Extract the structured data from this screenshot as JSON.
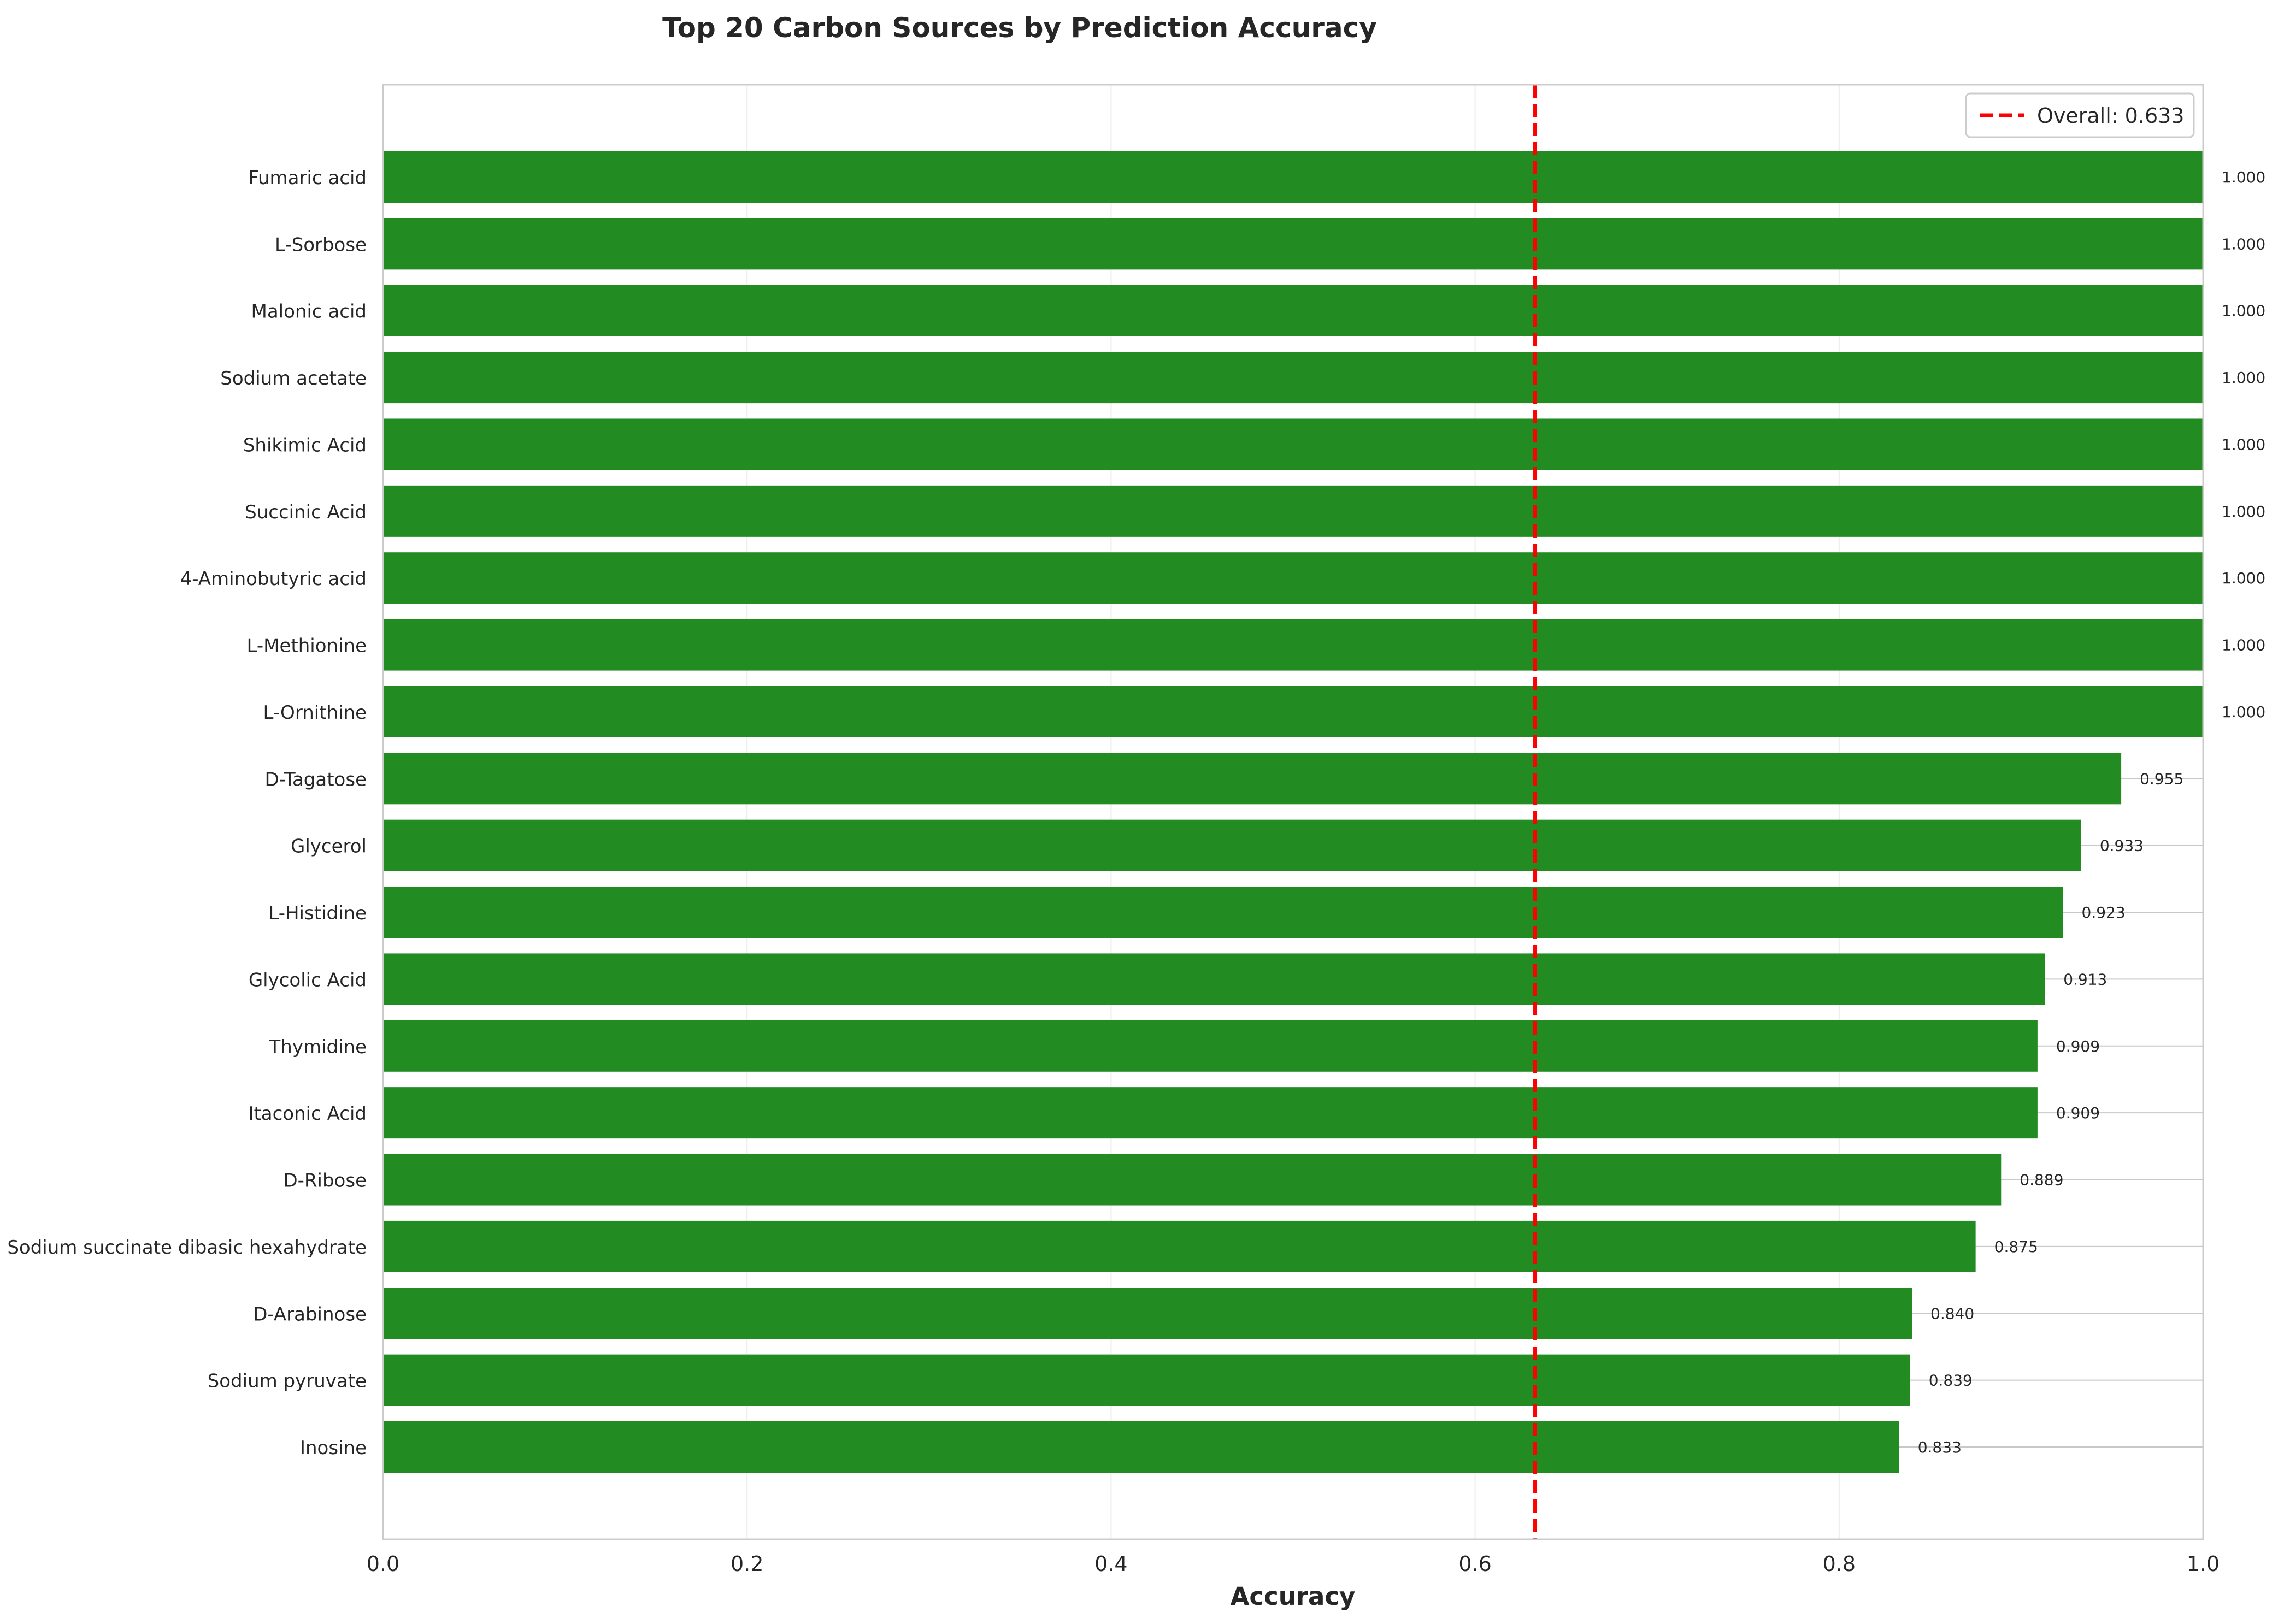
{
  "chart_data": {
    "type": "bar",
    "orientation": "horizontal",
    "title": "Top 20 Carbon Sources by Prediction Accuracy",
    "xlabel": "Accuracy",
    "ylabel": "",
    "xlim": [
      0,
      1.0
    ],
    "xticks": [
      "0.0",
      "0.2",
      "0.4",
      "0.6",
      "0.8",
      "1.0"
    ],
    "grid": true,
    "legend_placement": "top-right",
    "colors": {
      "bar": "#228B22",
      "reference_line": "#FF0000",
      "grid": "#EBEBEB",
      "frame": "#CCCCCC",
      "text": "#262626"
    },
    "categories": [
      "Fumaric acid",
      "L-Sorbose",
      "Malonic acid",
      "Sodium acetate",
      "Shikimic Acid",
      "Succinic Acid",
      "4-Aminobutyric acid",
      "L-Methionine",
      "L-Ornithine",
      "D-Tagatose",
      "Glycerol",
      "L-Histidine",
      "Glycolic Acid",
      "Thymidine",
      "Itaconic Acid",
      "D-Ribose",
      "Sodium succinate dibasic hexahydrate",
      "D-Arabinose",
      "Sodium pyruvate",
      "Inosine"
    ],
    "values": [
      1.0,
      1.0,
      1.0,
      1.0,
      1.0,
      1.0,
      1.0,
      1.0,
      1.0,
      0.955,
      0.933,
      0.923,
      0.913,
      0.909,
      0.909,
      0.889,
      0.875,
      0.84,
      0.839,
      0.833
    ],
    "value_labels": [
      "1.000",
      "1.000",
      "1.000",
      "1.000",
      "1.000",
      "1.000",
      "1.000",
      "1.000",
      "1.000",
      "0.955",
      "0.933",
      "0.923",
      "0.913",
      "0.909",
      "0.909",
      "0.889",
      "0.875",
      "0.840",
      "0.839",
      "0.833"
    ],
    "reference_line": {
      "value": 0.633,
      "label": "Overall: 0.633"
    }
  }
}
